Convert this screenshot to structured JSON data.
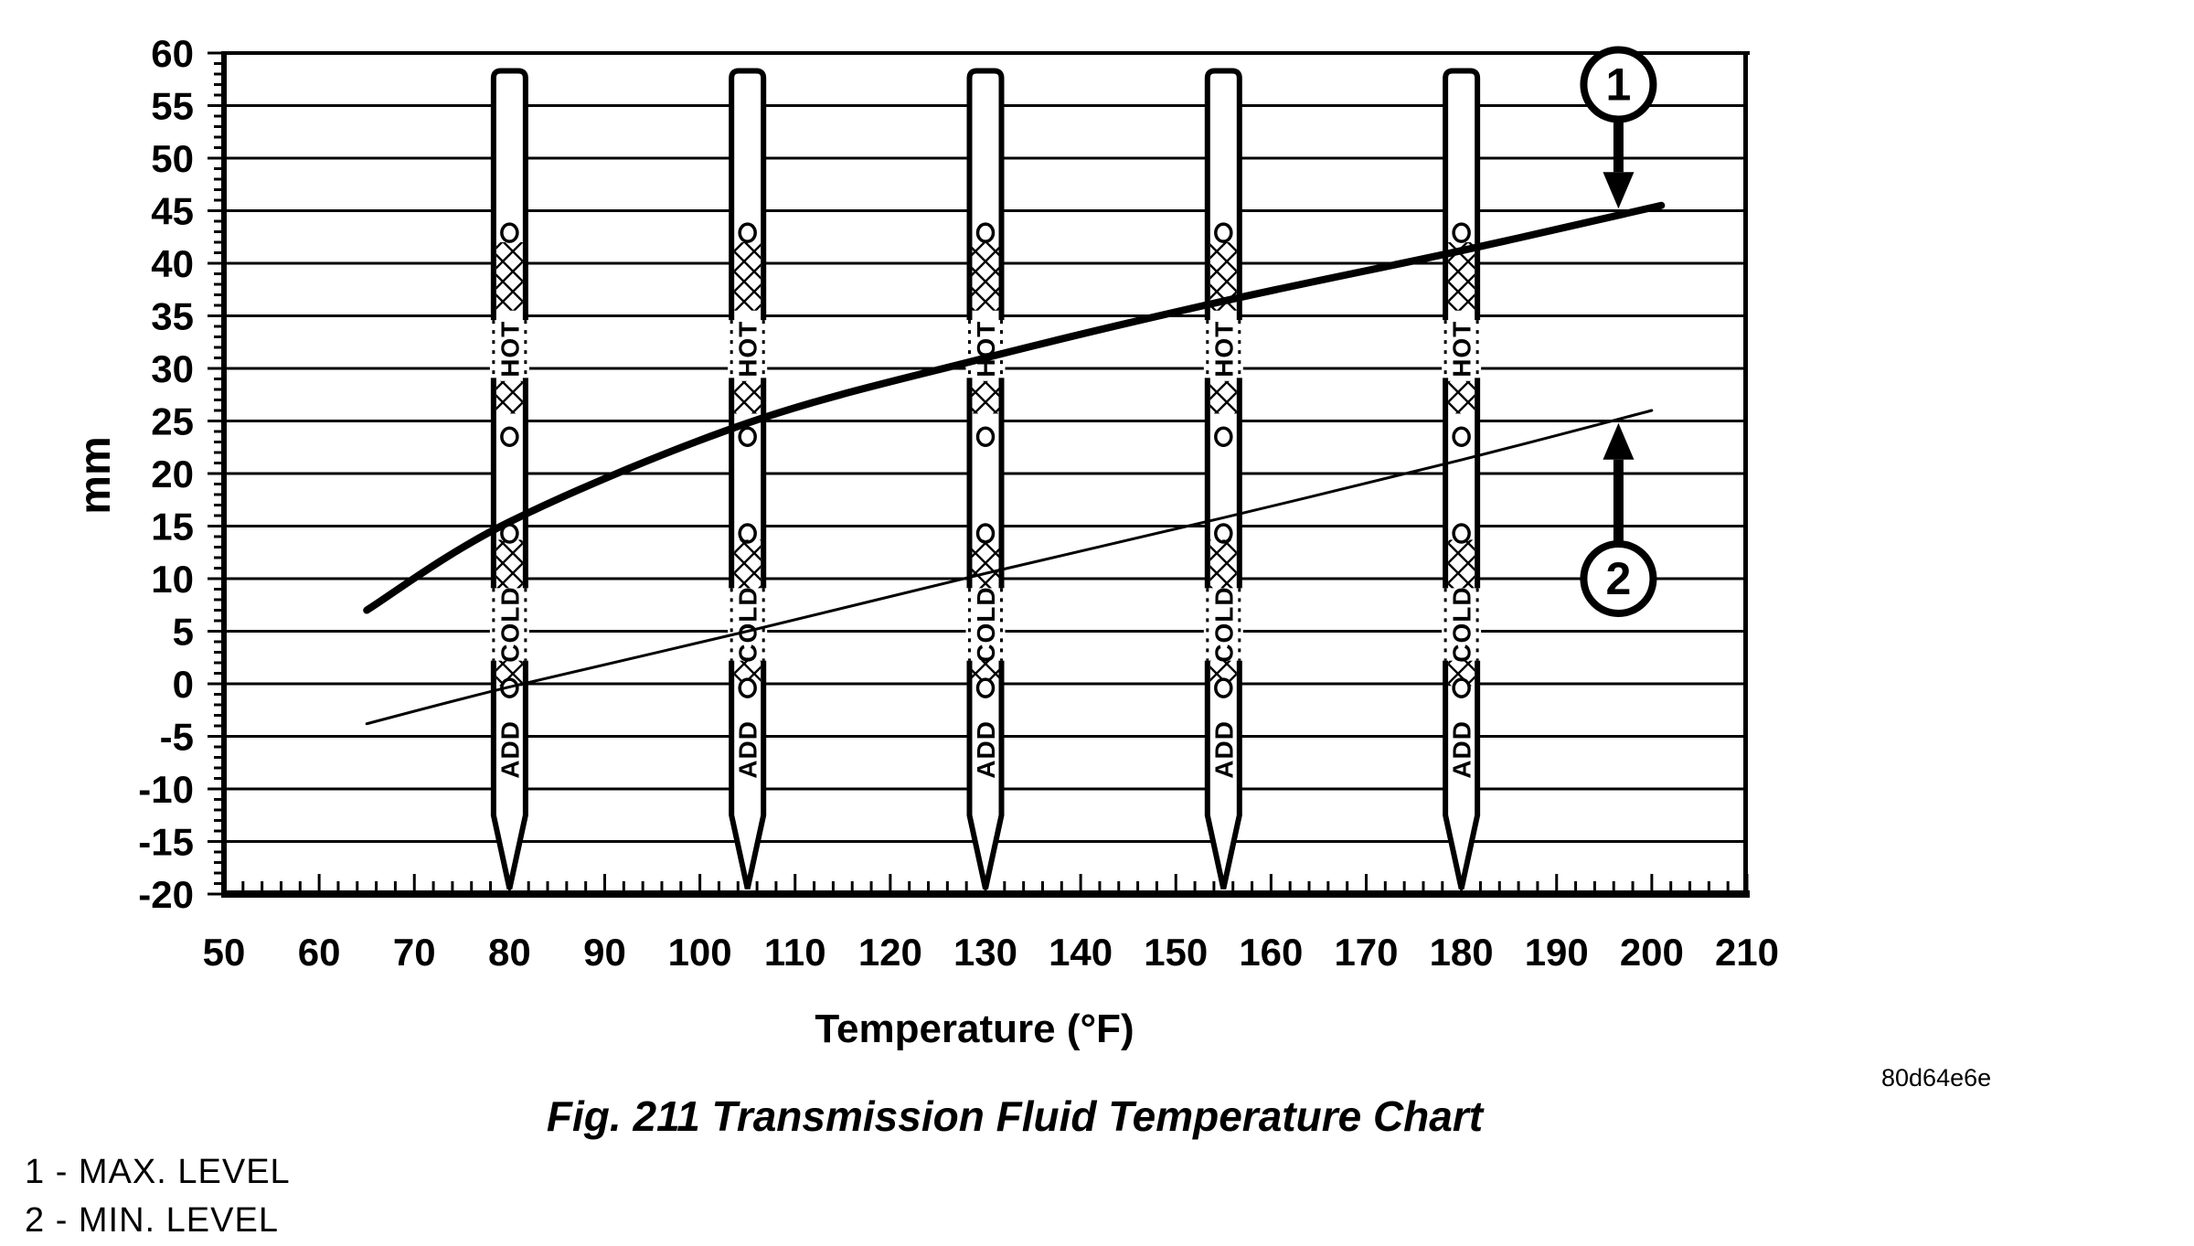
{
  "figure": {
    "caption": "Fig. 211 Transmission Fluid Temperature Chart",
    "doc_code": "80d64e6e",
    "legend": [
      {
        "key": "1",
        "label": "1 - MAX. LEVEL"
      },
      {
        "key": "2",
        "label": "2 - MIN. LEVEL"
      }
    ]
  },
  "chart_data": {
    "type": "line",
    "title": "Fig. 211 Transmission Fluid Temperature Chart",
    "xlabel": "Temperature (°F)",
    "ylabel": "mm",
    "xlim": [
      50,
      210
    ],
    "ylim": [
      -20,
      60
    ],
    "x_major_step": 10,
    "x_minor_step": 2,
    "y_major_step": 5,
    "y_minor_step": 1,
    "grid": "horizontal-only",
    "legend_position": "below-left",
    "ink_color": "#000000",
    "background_color": "#ffffff",
    "series": [
      {
        "name": "MAX. LEVEL",
        "callout": "1",
        "stroke_width": 8,
        "points": [
          [
            65,
            7
          ],
          [
            80,
            15.4
          ],
          [
            105,
            24.8
          ],
          [
            130,
            31
          ],
          [
            155,
            36.4
          ],
          [
            180,
            41.2
          ],
          [
            201,
            45.5
          ]
        ]
      },
      {
        "name": "MIN. LEVEL",
        "callout": "2",
        "stroke_width": 3,
        "points": [
          [
            65,
            -3.8
          ],
          [
            80,
            -0.3
          ],
          [
            105,
            5
          ],
          [
            130,
            10.5
          ],
          [
            155,
            15.8
          ],
          [
            180,
            21.3
          ],
          [
            200,
            26
          ]
        ]
      }
    ],
    "callouts": [
      {
        "label": "1",
        "cx_temp": 196.5,
        "cy_mm": 57.0,
        "arrow_to_mm": 45.2,
        "dir": "down"
      },
      {
        "label": "2",
        "cx_temp": 196.5,
        "cy_mm": 10.0,
        "arrow_to_mm": 24.8,
        "dir": "up"
      }
    ],
    "dipsticks": {
      "temps": [
        80,
        105,
        130,
        155,
        180
      ],
      "top_mm": 58.3,
      "taper_mm": -12.5,
      "tip_mm": -19.5,
      "features": [
        {
          "kind": "circle",
          "at": 42.9
        },
        {
          "kind": "hatch",
          "from": 42.0,
          "to": 35.5
        },
        {
          "kind": "text",
          "label": "HOT",
          "from": 34.6,
          "to": 29.1,
          "dashed_edge": true
        },
        {
          "kind": "hatch",
          "from": 28.8,
          "to": 25.7
        },
        {
          "kind": "circle",
          "at": 23.5
        },
        {
          "kind": "circle",
          "at": 14.3
        },
        {
          "kind": "hatch",
          "from": 13.7,
          "to": 9.1
        },
        {
          "kind": "text",
          "label": "COLD",
          "from": 9.1,
          "to": 2.2,
          "dashed_edge": true
        },
        {
          "kind": "hatch",
          "from": 2.2,
          "to": -0.2
        },
        {
          "kind": "circle",
          "at": -0.4
        },
        {
          "kind": "text",
          "label": "ADD",
          "from": -3.9,
          "to": -8.6,
          "dashed_edge": false
        }
      ]
    }
  }
}
